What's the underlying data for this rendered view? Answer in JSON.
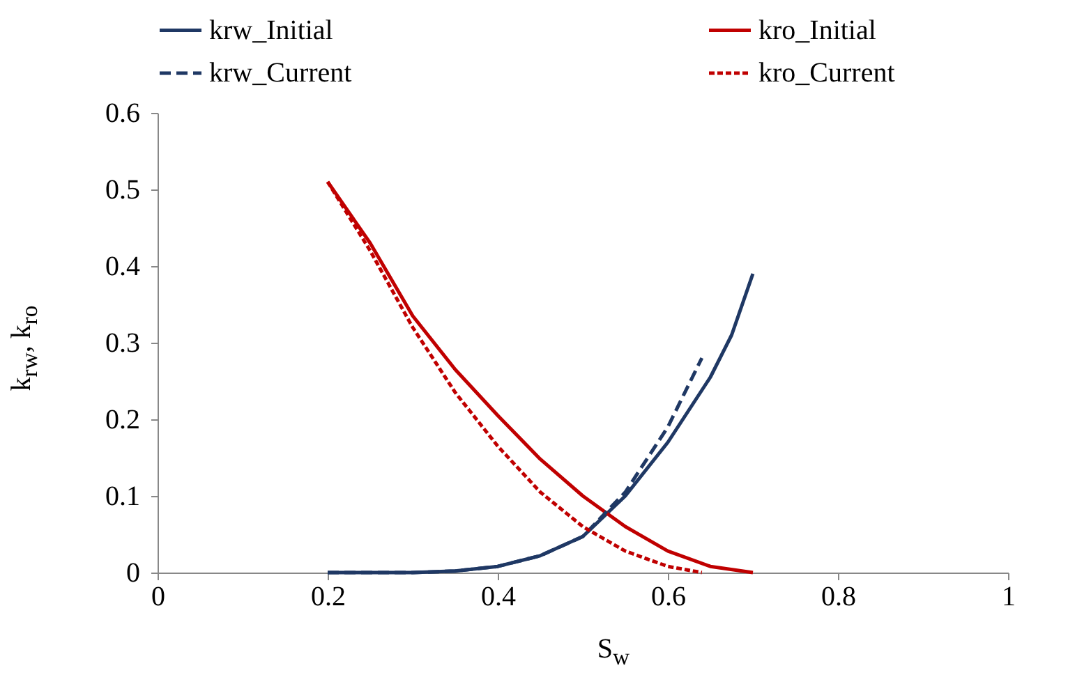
{
  "chart_data": {
    "type": "line",
    "xlabel": "S$_{w}$",
    "ylabel": "k$_{rw}$, k$_{ro}$",
    "xlim": [
      0,
      1
    ],
    "xticks": [
      0,
      0.2,
      0.4,
      0.6,
      0.8,
      1
    ],
    "ylim": [
      0,
      0.6
    ],
    "yticks": [
      0,
      0.1,
      0.2,
      0.3,
      0.4,
      0.5,
      0.6
    ],
    "grid": false,
    "legend": "top",
    "marker": "none",
    "series": [
      {
        "name": "krw_Initial",
        "color": "#1f3864",
        "line_style": "solid",
        "x": [
          0.2,
          0.3,
          0.35,
          0.4,
          0.45,
          0.5,
          0.55,
          0.6,
          0.65,
          0.675,
          0.7
        ],
        "values": [
          0,
          0,
          0.002,
          0.008,
          0.022,
          0.047,
          0.1,
          0.17,
          0.255,
          0.31,
          0.39
        ]
      },
      {
        "name": "kro_Initial",
        "color": "#c00000",
        "line_style": "solid",
        "x": [
          0.2,
          0.25,
          0.3,
          0.35,
          0.4,
          0.45,
          0.5,
          0.55,
          0.6,
          0.65,
          0.7
        ],
        "values": [
          0.51,
          0.43,
          0.335,
          0.265,
          0.205,
          0.148,
          0.1,
          0.06,
          0.028,
          0.008,
          0
        ]
      },
      {
        "name": "krw_Current",
        "color": "#1f3864",
        "line_style": "dashed",
        "x": [
          0.2,
          0.3,
          0.35,
          0.4,
          0.45,
          0.5,
          0.55,
          0.6,
          0.64
        ],
        "values": [
          0,
          0,
          0.002,
          0.008,
          0.022,
          0.047,
          0.105,
          0.19,
          0.28
        ]
      },
      {
        "name": "kro_Current",
        "color": "#c00000",
        "line_style": "dotted",
        "x": [
          0.2,
          0.25,
          0.3,
          0.35,
          0.4,
          0.45,
          0.5,
          0.55,
          0.6,
          0.64
        ],
        "values": [
          0.51,
          0.42,
          0.32,
          0.235,
          0.165,
          0.105,
          0.06,
          0.028,
          0.008,
          0
        ]
      }
    ]
  }
}
